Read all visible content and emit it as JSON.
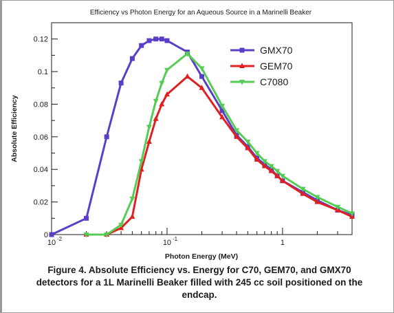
{
  "chart_data": {
    "type": "line",
    "title": "Efficiency vs Photon Energy for an Aqueous Source in a Marinelli Beaker",
    "xlabel": "Photon Energy (MeV)",
    "ylabel": "Absolute Efficiency",
    "x_scale": "log",
    "xlim": [
      0.01,
      4
    ],
    "ylim": [
      0,
      0.13
    ],
    "x_ticks": [
      0.01,
      0.1,
      1
    ],
    "x_tick_labels": [
      "10",
      "10",
      "1"
    ],
    "x_tick_exponents": [
      "-2",
      "-1",
      ""
    ],
    "y_ticks": [
      0,
      0.02,
      0.04,
      0.06,
      0.08,
      0.1,
      0.12
    ],
    "y_tick_labels": [
      "0",
      "0.02",
      "0.04",
      "0.06",
      "0.08",
      "0.1",
      "0.12"
    ],
    "grid": false,
    "legend_position": "top-right",
    "series": [
      {
        "name": "GMX70",
        "color": "#5a3ec8",
        "marker": "square",
        "x": [
          0.01,
          0.02,
          0.03,
          0.04,
          0.05,
          0.06,
          0.07,
          0.08,
          0.09,
          0.1,
          0.15,
          0.2,
          0.3,
          0.4,
          0.5,
          0.6,
          0.7,
          0.8,
          0.9,
          1,
          1.5,
          2,
          3,
          4
        ],
        "y": [
          0.0,
          0.01,
          0.06,
          0.093,
          0.108,
          0.116,
          0.119,
          0.12,
          0.12,
          0.119,
          0.112,
          0.097,
          0.076,
          0.061,
          0.054,
          0.047,
          0.043,
          0.04,
          0.036,
          0.033,
          0.026,
          0.021,
          0.015,
          0.012
        ]
      },
      {
        "name": "GEM70",
        "color": "#e02020",
        "marker": "triangle-up",
        "x": [
          0.02,
          0.03,
          0.04,
          0.05,
          0.06,
          0.07,
          0.08,
          0.09,
          0.1,
          0.15,
          0.2,
          0.3,
          0.4,
          0.5,
          0.6,
          0.7,
          0.8,
          0.9,
          1,
          1.5,
          2,
          3,
          4
        ],
        "y": [
          0.0,
          0.0,
          0.004,
          0.011,
          0.04,
          0.057,
          0.071,
          0.08,
          0.086,
          0.097,
          0.09,
          0.072,
          0.06,
          0.053,
          0.046,
          0.042,
          0.039,
          0.036,
          0.033,
          0.025,
          0.02,
          0.015,
          0.011
        ]
      },
      {
        "name": "C7080",
        "color": "#55cc55",
        "marker": "triangle-down",
        "x": [
          0.02,
          0.03,
          0.04,
          0.05,
          0.06,
          0.07,
          0.08,
          0.09,
          0.1,
          0.15,
          0.2,
          0.3,
          0.4,
          0.5,
          0.6,
          0.7,
          0.8,
          0.9,
          1,
          1.5,
          2,
          3,
          4
        ],
        "y": [
          0.0,
          0.0,
          0.006,
          0.022,
          0.045,
          0.066,
          0.082,
          0.093,
          0.101,
          0.111,
          0.102,
          0.079,
          0.064,
          0.057,
          0.05,
          0.045,
          0.042,
          0.039,
          0.036,
          0.028,
          0.023,
          0.017,
          0.013
        ]
      }
    ]
  },
  "caption": "Figure 4. Absolute Efficiency vs. Energy for C70, GEM70, and GMX70 detectors for a 1L Marinelli Beaker filled with 245 cc soil positioned on the endcap."
}
